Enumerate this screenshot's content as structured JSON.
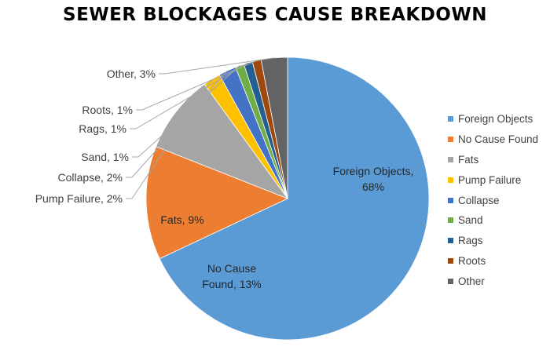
{
  "chart_data": {
    "type": "pie",
    "title": "SEWER BLOCKAGES CAUSE BREAKDOWN",
    "slices": [
      {
        "label": "Foreign Objects",
        "value": 68,
        "color": "#5b9bd5",
        "data_label_line1": "Foreign Objects,",
        "data_label_line2": "68%"
      },
      {
        "label": "No Cause Found",
        "value": 13,
        "color": "#ed7d31",
        "data_label_line1": "No Cause",
        "data_label_line2": "Found, 13%"
      },
      {
        "label": "Fats",
        "value": 9,
        "color": "#a5a5a5",
        "data_label_line1": "Fats, 9%",
        "data_label_line2": ""
      },
      {
        "label": "Pump Failure",
        "value": 2,
        "color": "#ffc000",
        "data_label_line1": "Pump Failure, 2%",
        "data_label_line2": ""
      },
      {
        "label": "Collapse",
        "value": 2,
        "color": "#4472c4",
        "data_label_line1": "Collapse, 2%",
        "data_label_line2": ""
      },
      {
        "label": "Sand",
        "value": 1,
        "color": "#70ad47",
        "data_label_line1": "Sand, 1%",
        "data_label_line2": ""
      },
      {
        "label": "Rags",
        "value": 1,
        "color": "#255e91",
        "data_label_line1": "Rags, 1%",
        "data_label_line2": ""
      },
      {
        "label": "Roots",
        "value": 1,
        "color": "#9e480e",
        "data_label_line1": "Roots, 1%",
        "data_label_line2": ""
      },
      {
        "label": "Other",
        "value": 3,
        "color": "#636363",
        "data_label_line1": "Other, 3%",
        "data_label_line2": ""
      }
    ],
    "legend_position": "right"
  }
}
